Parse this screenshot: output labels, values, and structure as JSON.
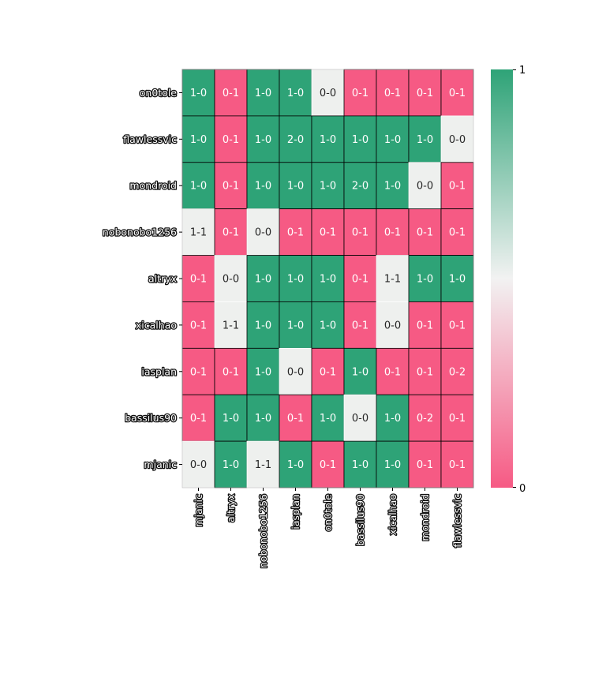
{
  "chart_data": {
    "type": "heatmap",
    "title": "",
    "xlabel": "",
    "ylabel": "",
    "rows": [
      "on0tole",
      "flawlessvic",
      "mondroid",
      "nobonobo1256",
      "altryx",
      "xicalhao",
      "iasplan",
      "bassilus90",
      "mjanic"
    ],
    "columns": [
      "mjanic",
      "altryx",
      "nobonobo1256",
      "iasplan",
      "on0tole",
      "bassilus90",
      "xicalhao",
      "mondroid",
      "flawlessvic"
    ],
    "cells": [
      [
        "1-0",
        "0-1",
        "1-0",
        "1-0",
        "0-0",
        "0-1",
        "0-1",
        "0-1",
        "0-1"
      ],
      [
        "1-0",
        "0-1",
        "1-0",
        "2-0",
        "1-0",
        "1-0",
        "1-0",
        "1-0",
        "0-0"
      ],
      [
        "1-0",
        "0-1",
        "1-0",
        "1-0",
        "1-0",
        "2-0",
        "1-0",
        "0-0",
        "0-1"
      ],
      [
        "1-1",
        "0-1",
        "0-0",
        "0-1",
        "0-1",
        "0-1",
        "0-1",
        "0-1",
        "0-1"
      ],
      [
        "0-1",
        "0-0",
        "1-0",
        "1-0",
        "1-0",
        "0-1",
        "1-1",
        "1-0",
        "1-0"
      ],
      [
        "0-1",
        "1-1",
        "1-0",
        "1-0",
        "1-0",
        "0-1",
        "0-0",
        "0-1",
        "0-1"
      ],
      [
        "0-1",
        "0-1",
        "1-0",
        "0-0",
        "0-1",
        "1-0",
        "0-1",
        "0-1",
        "0-2"
      ],
      [
        "0-1",
        "1-0",
        "1-0",
        "0-1",
        "1-0",
        "0-0",
        "1-0",
        "0-2",
        "0-1"
      ],
      [
        "0-0",
        "1-0",
        "1-1",
        "1-0",
        "0-1",
        "1-0",
        "1-0",
        "0-1",
        "0-1"
      ]
    ],
    "colorbar": {
      "min": 0,
      "max": 1,
      "tick_labels": [
        "1",
        "0"
      ]
    },
    "colors": {
      "win": "#2ea377",
      "loss": "#f65a84",
      "draw": "#eef0ee"
    }
  }
}
